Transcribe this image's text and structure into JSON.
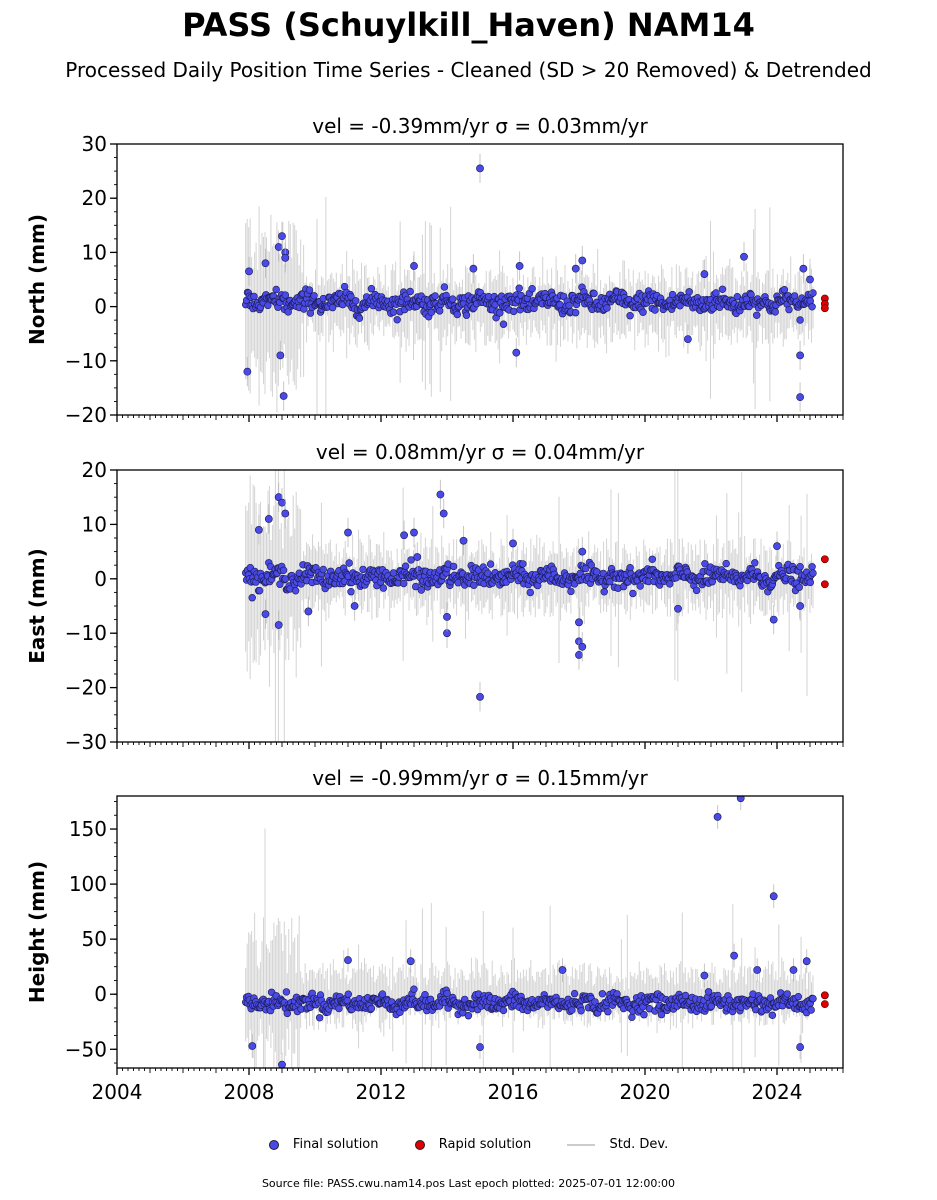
{
  "title": "PASS (Schuylkill_Haven) NAM14",
  "subtitle": "Processed Daily Position Time Series - Cleaned (SD > 20 Removed) & Detrended",
  "colors": {
    "final": "#4a4ae8",
    "rapid": "#e00000",
    "sd": "#b0b0b0"
  },
  "legend": {
    "final": "Final solution",
    "rapid": "Rapid solution",
    "sd": "Std. Dev."
  },
  "footer": "Source file: PASS.cwu.nam14.pos  Last epoch plotted: 2025-07-01 12:00:00",
  "chart_data": [
    {
      "type": "scatter",
      "title": "vel = -0.39mm/yr   σ = 0.03mm/yr",
      "ylabel": "North (mm)",
      "xlim": [
        2004,
        2026
      ],
      "ylim": [
        -20,
        30
      ],
      "yticks": [
        -20,
        -10,
        0,
        10,
        20,
        30
      ],
      "ytick_labels": [
        "−20",
        "−10",
        "0",
        "10",
        "20",
        "30"
      ],
      "series": [
        {
          "name": "Final solution",
          "data_range": [
            2007.9,
            2025.1
          ],
          "typical_spread": 3,
          "outliers": [
            [
              2007.95,
              -12
            ],
            [
              2008.0,
              6.5
            ],
            [
              2008.5,
              8
            ],
            [
              2008.9,
              11
            ],
            [
              2009.0,
              13
            ],
            [
              2009.1,
              10
            ],
            [
              2008.95,
              -9
            ],
            [
              2009.05,
              -16.5
            ],
            [
              2009.1,
              9
            ],
            [
              2013.0,
              7.5
            ],
            [
              2014.8,
              7
            ],
            [
              2015.0,
              25.5
            ],
            [
              2016.1,
              -8.5
            ],
            [
              2016.2,
              7.5
            ],
            [
              2018.1,
              8.5
            ],
            [
              2017.9,
              7
            ],
            [
              2021.3,
              -6
            ],
            [
              2021.8,
              6
            ],
            [
              2023.0,
              9.2
            ],
            [
              2024.7,
              -9
            ],
            [
              2024.8,
              7
            ],
            [
              2024.7,
              -16.7
            ],
            [
              2025.0,
              5
            ]
          ]
        },
        {
          "name": "Rapid solution",
          "points": [
            [
              2025.45,
              1.5
            ],
            [
              2025.45,
              0.5
            ],
            [
              2025.45,
              -0.3
            ]
          ]
        }
      ]
    },
    {
      "type": "scatter",
      "title": "vel = 0.08mm/yr   σ = 0.04mm/yr",
      "ylabel": "East (mm)",
      "xlim": [
        2004,
        2026
      ],
      "ylim": [
        -30,
        20
      ],
      "yticks": [
        -30,
        -20,
        -10,
        0,
        10,
        20
      ],
      "ytick_labels": [
        "−30",
        "−20",
        "−10",
        "0",
        "10",
        "20"
      ],
      "series": [
        {
          "name": "Final solution",
          "data_range": [
            2007.9,
            2025.1
          ],
          "typical_spread": 3,
          "outliers": [
            [
              2008.3,
              9
            ],
            [
              2008.6,
              11
            ],
            [
              2008.9,
              15
            ],
            [
              2009.0,
              14
            ],
            [
              2008.9,
              -8.5
            ],
            [
              2009.1,
              12
            ],
            [
              2008.5,
              -6.5
            ],
            [
              2009.8,
              -6
            ],
            [
              2011.0,
              8.5
            ],
            [
              2011.2,
              -5
            ],
            [
              2012.7,
              8
            ],
            [
              2013.0,
              8.5
            ],
            [
              2013.1,
              4
            ],
            [
              2013.8,
              15.5
            ],
            [
              2013.9,
              12
            ],
            [
              2014.0,
              -10
            ],
            [
              2014.0,
              -7
            ],
            [
              2014.5,
              7
            ],
            [
              2015.0,
              -21.7
            ],
            [
              2016.0,
              6.5
            ],
            [
              2018.0,
              -8
            ],
            [
              2018.0,
              -11.5
            ],
            [
              2018.0,
              -14
            ],
            [
              2018.1,
              -12.5
            ],
            [
              2018.1,
              5
            ],
            [
              2021.0,
              -5.5
            ],
            [
              2023.9,
              -7.5
            ],
            [
              2024.0,
              6
            ],
            [
              2024.7,
              -5
            ]
          ]
        },
        {
          "name": "Rapid solution",
          "points": [
            [
              2025.45,
              3.6
            ],
            [
              2025.45,
              -1
            ]
          ]
        }
      ]
    },
    {
      "type": "scatter",
      "title": "vel = -0.99mm/yr   σ = 0.15mm/yr",
      "ylabel": "Height (mm)",
      "xlim": [
        2004,
        2026
      ],
      "ylim": [
        -67,
        180
      ],
      "yticks": [
        -50,
        0,
        50,
        100,
        150
      ],
      "ytick_labels": [
        "−50",
        "0",
        "50",
        "100",
        "150"
      ],
      "xtick_labels": [
        "2004",
        "2008",
        "2012",
        "2016",
        "2020",
        "2024"
      ],
      "series": [
        {
          "name": "Final solution",
          "data_range": [
            2007.9,
            2025.1
          ],
          "typical_spread": 12,
          "outliers": [
            [
              2008.1,
              -47
            ],
            [
              2009.0,
              -64
            ],
            [
              2011.0,
              31
            ],
            [
              2012.9,
              30
            ],
            [
              2015.0,
              -48
            ],
            [
              2017.5,
              22
            ],
            [
              2021.8,
              17
            ],
            [
              2022.2,
              161
            ],
            [
              2022.7,
              35
            ],
            [
              2022.9,
              178
            ],
            [
              2023.4,
              22
            ],
            [
              2023.9,
              89
            ],
            [
              2024.7,
              -48
            ],
            [
              2024.9,
              30
            ],
            [
              2024.5,
              22
            ]
          ]
        },
        {
          "name": "Rapid solution",
          "points": [
            [
              2025.45,
              -1
            ],
            [
              2025.45,
              -9
            ]
          ]
        }
      ]
    }
  ]
}
